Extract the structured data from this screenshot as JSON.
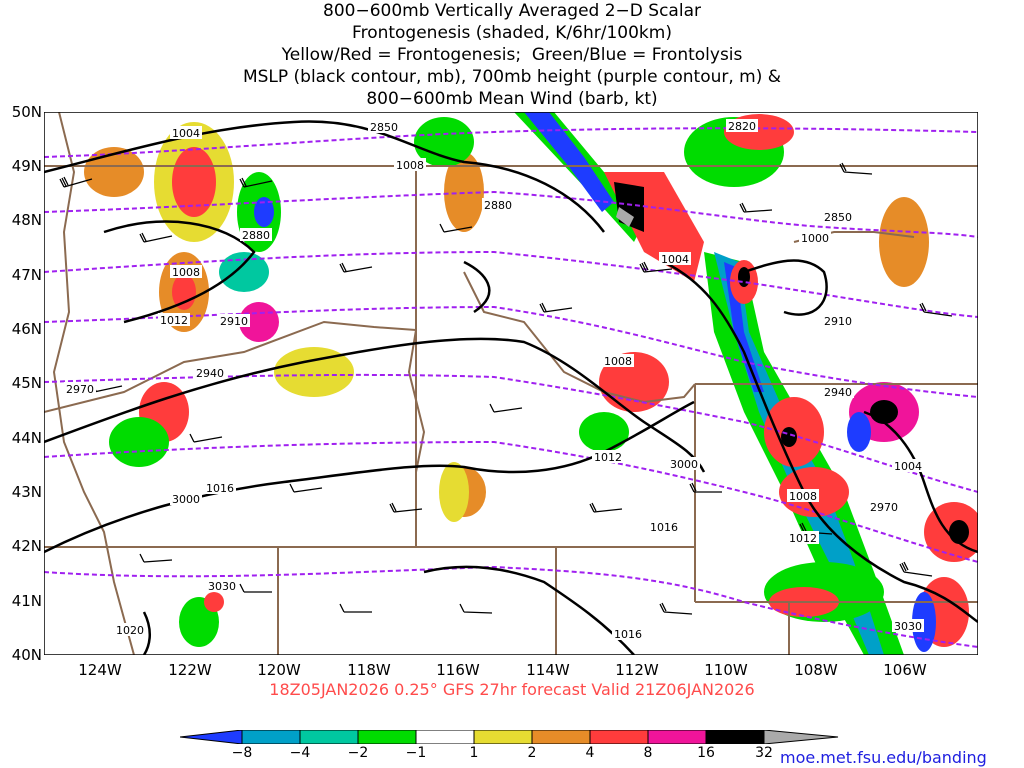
{
  "title_lines": [
    "800−600mb Vertically Averaged 2−D Scalar",
    "Frontogenesis (shaded, K/6hr/100km)",
    "Yellow/Red = Frontogenesis;  Green/Blue = Frontolysis",
    "MSLP (black contour, mb), 700mb height (purple contour, m) &",
    "800−600mb Mean Wind (barb, kt)"
  ],
  "footer": "18Z05JAN2026 0.25° GFS 27hr forecast Valid 21Z06JAN2026",
  "credit": "moe.met.fsu.edu/banding",
  "lat_labels": [
    "50N",
    "49N",
    "48N",
    "47N",
    "46N",
    "45N",
    "44N",
    "43N",
    "42N",
    "41N",
    "40N"
  ],
  "lon_labels": [
    "124W",
    "122W",
    "120W",
    "118W",
    "116W",
    "114W",
    "112W",
    "110W",
    "108W",
    "106W"
  ],
  "colorbar": {
    "labels": [
      "−8",
      "−4",
      "−2",
      "−1",
      "1",
      "2",
      "4",
      "8",
      "16",
      "32"
    ],
    "colors": [
      "#1e3cff",
      "#00a0c8",
      "#00c8a0",
      "#00dc00",
      "#ffffff",
      "#e6dc32",
      "#e68c28",
      "#ff3c3c",
      "#f0149a",
      "#000000",
      "#aaaaaa"
    ]
  },
  "mslp_labels": [
    "1004",
    "1008",
    "1008",
    "1012",
    "1016",
    "1020",
    "1004",
    "1008",
    "1012",
    "1016",
    "1000",
    "1004",
    "1008",
    "1012",
    "1016"
  ],
  "height_labels": [
    "2850",
    "2880",
    "2910",
    "2940",
    "2970",
    "3000",
    "3030",
    "2820",
    "2850",
    "2880",
    "2910",
    "2940",
    "2970",
    "3000",
    "3030"
  ],
  "colors": {
    "mslp": "#000000",
    "height": "#a020f0",
    "border": "#8b6a50",
    "footer": "#ff4b4b"
  }
}
